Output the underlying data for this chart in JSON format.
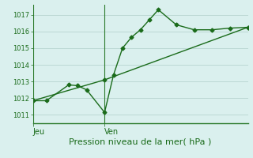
{
  "background_color": "#daf0ee",
  "grid_color": "#bcd8d4",
  "line_color": "#1a6b1a",
  "spine_color": "#2a7a2a",
  "xlabel": "Pression niveau de la mer( hPa )",
  "ylim": [
    1010.5,
    1017.6
  ],
  "yticks": [
    1011,
    1012,
    1013,
    1014,
    1015,
    1016,
    1017
  ],
  "xlim": [
    0,
    48
  ],
  "vlines": [
    {
      "x": 0,
      "label": "Jeu"
    },
    {
      "x": 16,
      "label": "Ven"
    }
  ],
  "line1_x": [
    0,
    3,
    8,
    10,
    12,
    16,
    18,
    20,
    22,
    24,
    26,
    28,
    32,
    36,
    40,
    44,
    48
  ],
  "line1_y": [
    1011.85,
    1011.85,
    1012.8,
    1012.75,
    1012.5,
    1011.15,
    1013.4,
    1015.0,
    1015.65,
    1016.1,
    1016.7,
    1017.3,
    1016.4,
    1016.1,
    1016.1,
    1016.2,
    1016.25
  ],
  "line2_x": [
    0,
    16,
    48
  ],
  "line2_y": [
    1011.85,
    1013.1,
    1016.25
  ],
  "marker_size": 2.5,
  "line_width": 1.0,
  "xlabel_fontsize": 8,
  "ytick_fontsize": 6,
  "xtick_fontsize": 7
}
